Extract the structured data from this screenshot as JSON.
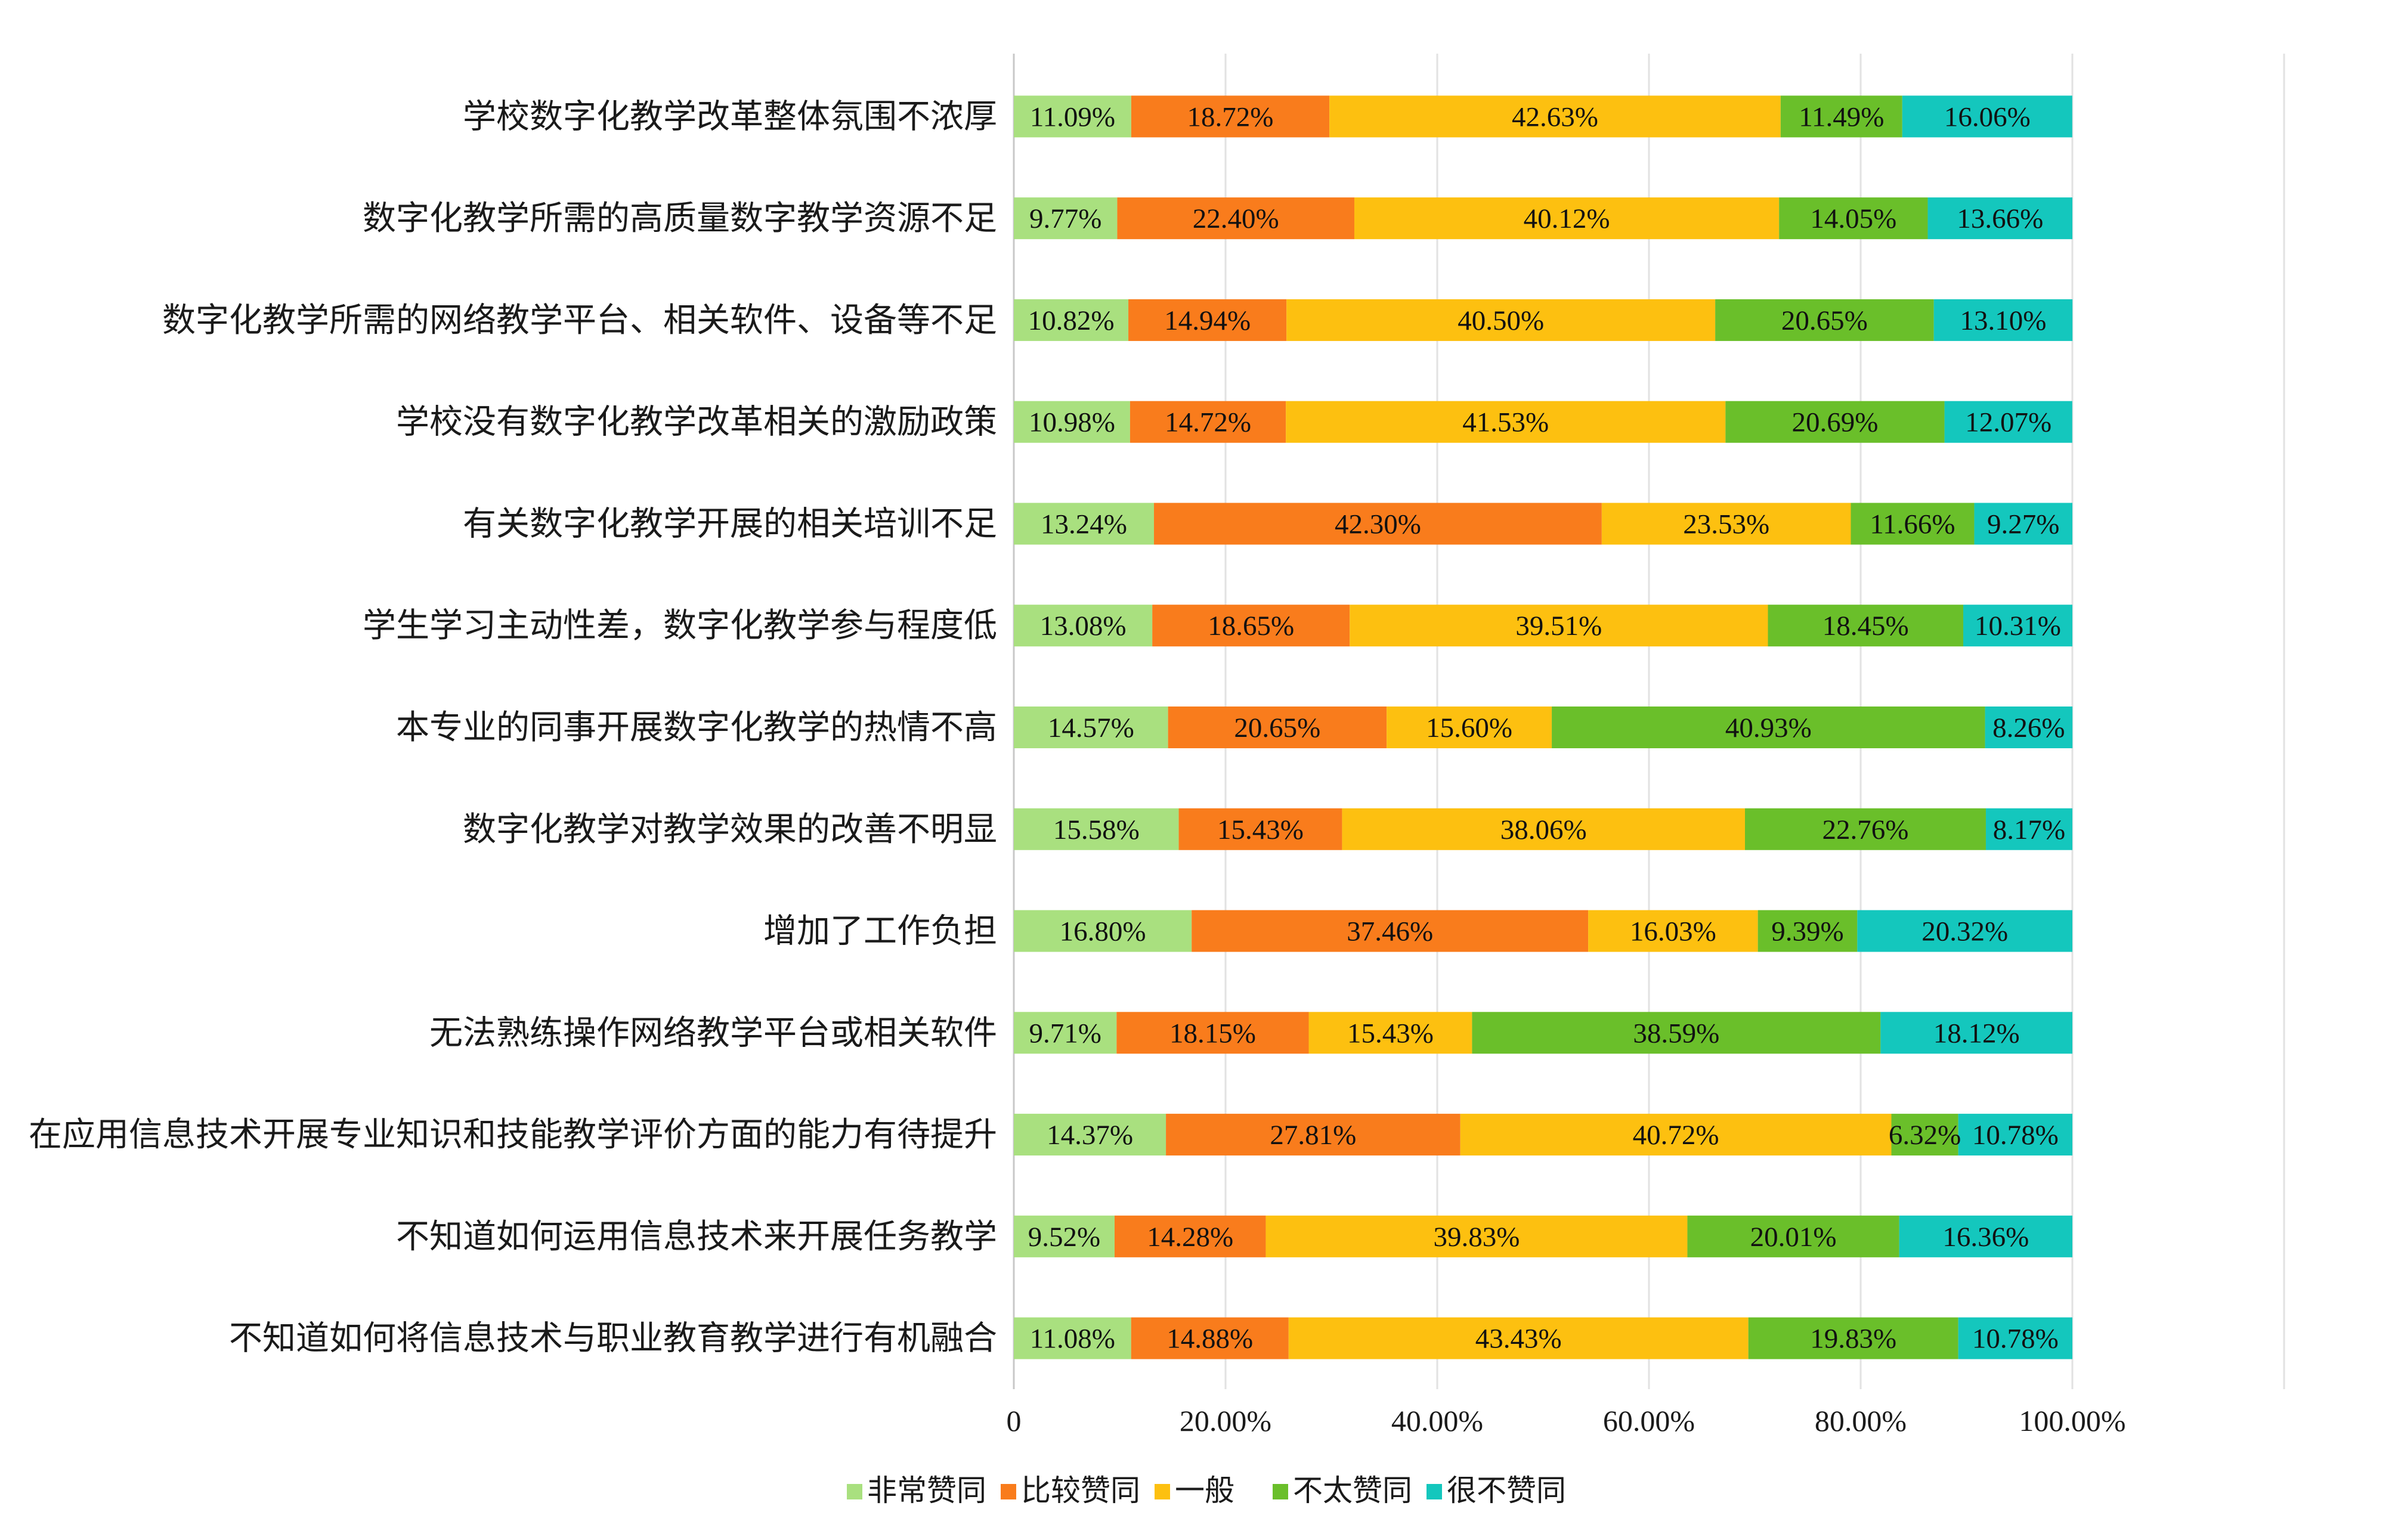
{
  "chart_data": {
    "type": "bar",
    "orientation": "horizontal",
    "stacked": true,
    "categories": [
      "学校数字化教学改革整体氛围不浓厚",
      "数字化教学所需的高质量数字教学资源不足",
      "数字化教学所需的网络教学平台、相关软件、设备等不足",
      "学校没有数字化教学改革相关的激励政策",
      "有关数字化教学开展的相关培训不足",
      "学生学习主动性差，数字化教学参与程度低",
      "本专业的同事开展数字化教学的热情不高",
      "数字化教学对教学效果的改善不明显",
      "增加了工作负担",
      "无法熟练操作网络教学平台或相关软件",
      "在应用信息技术开展专业知识和技能教学评价方面的能力有待提升",
      "不知道如何运用信息技术来开展任务教学",
      "不知道如何将信息技术与职业教育教学进行有机融合"
    ],
    "series": [
      {
        "name": "非常赞同",
        "color": "#a9e07f",
        "values": [
          11.09,
          9.77,
          10.82,
          10.98,
          13.24,
          13.08,
          14.57,
          15.58,
          16.8,
          9.71,
          14.37,
          9.52,
          11.08
        ],
        "labels": [
          "11.09%",
          "9.77%",
          "10.82%",
          "10.98%",
          "13.24%",
          "13.08%",
          "14.57%",
          "15.58%",
          "16.80%",
          "9.71%",
          "14.37%",
          "9.52%",
          "11.08%"
        ]
      },
      {
        "name": "比较赞同",
        "color": "#f97c1c",
        "values": [
          18.72,
          22.4,
          14.94,
          14.72,
          42.3,
          18.65,
          20.65,
          15.43,
          37.46,
          18.15,
          27.81,
          14.28,
          14.88
        ],
        "labels": [
          "18.72%",
          "22.40%",
          "14.94%",
          "14.72%",
          "42.30%",
          "18.65%",
          "20.65%",
          "15.43%",
          "37.46%",
          "18.15%",
          "27.81%",
          "14.28%",
          "14.88%"
        ]
      },
      {
        "name": "一般",
        "color": "#fdc010",
        "values": [
          42.63,
          40.12,
          40.5,
          41.53,
          23.53,
          39.51,
          15.6,
          38.06,
          16.03,
          15.43,
          40.72,
          39.83,
          43.43
        ],
        "labels": [
          "42.63%",
          "40.12%",
          "40.50%",
          "41.53%",
          "23.53%",
          "39.51%",
          "15.60%",
          "38.06%",
          "16.03%",
          "15.43%",
          "40.72%",
          "39.83%",
          "43.43%"
        ]
      },
      {
        "name": "不太赞同",
        "color": "#6abf2a",
        "values": [
          11.49,
          14.05,
          20.65,
          20.69,
          11.66,
          18.45,
          40.93,
          22.76,
          9.39,
          38.59,
          6.32,
          20.01,
          19.83
        ],
        "labels": [
          "11.49%",
          "14.05%",
          "20.65%",
          "20.69%",
          "11.66%",
          "18.45%",
          "40.93%",
          "22.76%",
          "9.39%",
          "38.59%",
          "6.32%",
          "20.01%",
          "19.83%"
        ]
      },
      {
        "name": "很不赞同",
        "color": "#14c7bd",
        "values": [
          16.06,
          13.66,
          13.1,
          12.07,
          9.27,
          10.31,
          8.26,
          8.17,
          20.32,
          18.12,
          10.78,
          16.36,
          10.78
        ],
        "labels": [
          "16.06%",
          "13.66%",
          "13.10%",
          "12.07%",
          "9.27%",
          "10.31%",
          "8.26%",
          "8.17%",
          "20.32%",
          "18.12%",
          "10.78%",
          "16.36%",
          "10.78%"
        ]
      }
    ],
    "x_ticks": [
      "0",
      "20.00%",
      "40.00%",
      "60.00%",
      "80.00%",
      "100.00%"
    ],
    "xlim": [
      0,
      120
    ],
    "grid": true,
    "legend_position": "bottom"
  }
}
